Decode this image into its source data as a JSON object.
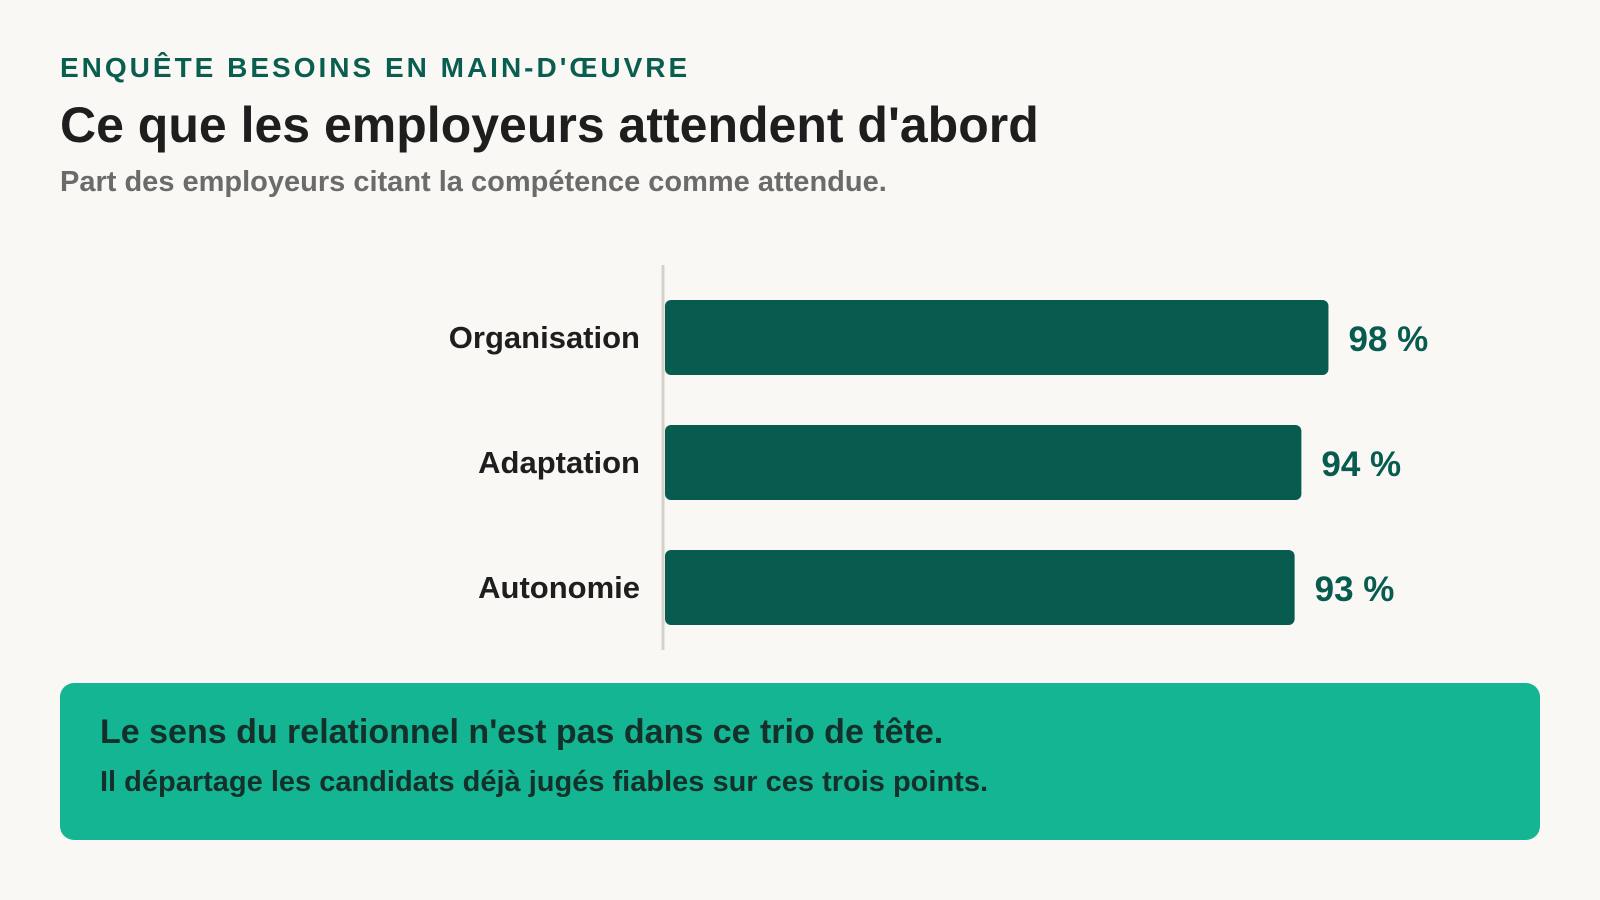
{
  "header": {
    "kicker": "ENQUÊTE BESOINS EN MAIN-D'ŒUVRE",
    "title": "Ce que les employeurs attendent d'abord",
    "subtitle": "Part des employeurs citant la compétence comme attendue."
  },
  "chart_data": {
    "type": "bar",
    "orientation": "horizontal",
    "categories": [
      "Organisation",
      "Adaptation",
      "Autonomie"
    ],
    "values": [
      98,
      94,
      93
    ],
    "value_labels": [
      "98 %",
      "94 %",
      "93 %"
    ],
    "unit": "%",
    "xlim": [
      0,
      100
    ],
    "grid": false,
    "legend": "none",
    "bar_color": "#075b4f",
    "label_color": "#075b4f"
  },
  "callout": {
    "headline": "Le sens du relationnel n'est pas dans ce trio de tête.",
    "body": "Il départage les candidats déjà jugés fiables sur ces trois points.",
    "background": "#14b592"
  }
}
